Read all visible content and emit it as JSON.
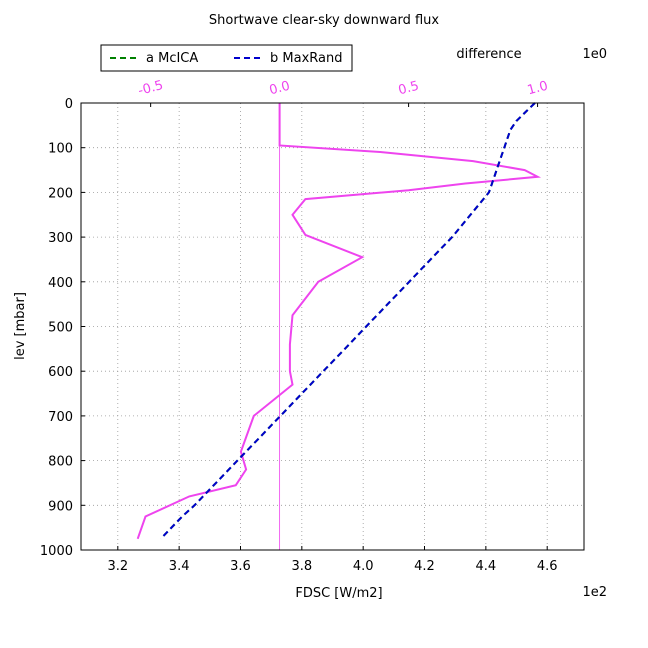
{
  "chart_data": {
    "type": "line",
    "title": "Shortwave clear-sky downward flux",
    "xlabel": "FDSC [W/m2]",
    "ylabel": "lev [mbar]",
    "x_offset_label": "1e2",
    "xlim": [
      3.08,
      4.72
    ],
    "ylim": [
      1000,
      0
    ],
    "x_ticks": [
      3.2,
      3.4,
      3.6,
      3.8,
      4.0,
      4.2,
      4.4,
      4.6
    ],
    "x_tick_labels": [
      "3.2",
      "3.4",
      "3.6",
      "3.8",
      "4.0",
      "4.2",
      "4.4",
      "4.6"
    ],
    "y_ticks": [
      0,
      100,
      200,
      300,
      400,
      500,
      600,
      700,
      800,
      900,
      1000
    ],
    "y_tick_labels": [
      "0",
      "100",
      "200",
      "300",
      "400",
      "500",
      "600",
      "700",
      "800",
      "900",
      "1000"
    ],
    "grid": true,
    "legend_position": "top-left",
    "levels": [
      0,
      20,
      40,
      60,
      80,
      100,
      120,
      140,
      160,
      180,
      200,
      225,
      250,
      300,
      350,
      400,
      450,
      500,
      550,
      600,
      650,
      700,
      750,
      800,
      850,
      900,
      925,
      975
    ],
    "series": [
      {
        "name": "a McICA",
        "color": "#008000",
        "dash": "6,4",
        "values": [
          4.56,
          4.53,
          4.5,
          4.48,
          4.47,
          4.46,
          4.45,
          4.44,
          4.43,
          4.42,
          4.41,
          4.38,
          4.35,
          4.29,
          4.22,
          4.15,
          4.08,
          4.01,
          3.94,
          3.87,
          3.8,
          3.73,
          3.66,
          3.59,
          3.52,
          3.45,
          3.41,
          3.34
        ]
      },
      {
        "name": "b MaxRand",
        "color": "#0000cc",
        "dash": "6,4",
        "values": [
          4.56,
          4.53,
          4.5,
          4.48,
          4.47,
          4.46,
          4.45,
          4.44,
          4.43,
          4.42,
          4.41,
          4.38,
          4.35,
          4.29,
          4.22,
          4.15,
          4.08,
          4.01,
          3.94,
          3.87,
          3.8,
          3.73,
          3.66,
          3.59,
          3.52,
          3.45,
          3.41,
          3.34
        ]
      }
    ],
    "difference": {
      "label": "difference",
      "offset_label": "1e0",
      "color": "#ee44ee",
      "xlim": [
        -0.77,
        1.18
      ],
      "ticks": [
        -0.5,
        0.0,
        0.5,
        1.0
      ],
      "tick_labels": [
        "-0.5",
        "0.0",
        "0.5",
        "1.0"
      ],
      "levels": [
        0,
        95,
        110,
        130,
        150,
        165,
        180,
        195,
        215,
        250,
        295,
        345,
        400,
        475,
        540,
        600,
        630,
        700,
        780,
        820,
        855,
        880,
        925,
        975
      ],
      "values": [
        0.0,
        0.0,
        0.4,
        0.75,
        0.95,
        1.0,
        0.72,
        0.5,
        0.1,
        0.05,
        0.1,
        0.32,
        0.15,
        0.05,
        0.04,
        0.04,
        0.05,
        -0.1,
        -0.15,
        -0.13,
        -0.17,
        -0.35,
        -0.52,
        -0.55
      ]
    }
  }
}
